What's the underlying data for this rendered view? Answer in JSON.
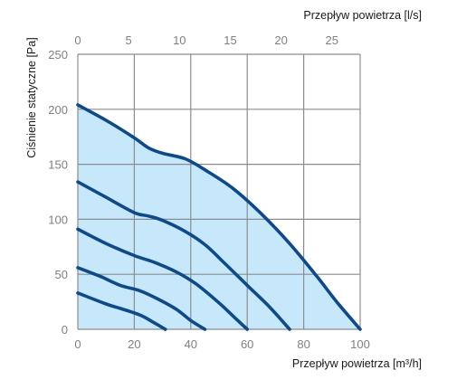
{
  "chart_data": {
    "type": "line",
    "xlabel": "Przepływ powietrza [m³/h]",
    "x2label": "Przepływ powietrza [l/s]",
    "ylabel": "Ciśnienie statyczne [Pa]",
    "xlim": [
      0,
      100
    ],
    "x2lim": [
      0,
      27.78
    ],
    "ylim": [
      0,
      250
    ],
    "x_ticks": [
      0,
      20,
      40,
      60,
      80,
      100
    ],
    "x2_ticks": [
      0,
      5,
      10,
      15,
      20,
      25
    ],
    "y_ticks": [
      0,
      50,
      100,
      150,
      200,
      250
    ],
    "grid": true,
    "fill_under_outer_curve": true,
    "fill_color": "#c6e8fa",
    "line_color": "#0d4a8c",
    "grid_color": "#8c8c8c",
    "series": [
      {
        "x": [
          0,
          10,
          20,
          25,
          30,
          38,
          45,
          55,
          65,
          75,
          85,
          92,
          100
        ],
        "y": [
          204,
          190,
          174,
          165,
          160,
          155,
          145,
          128,
          105,
          78,
          47,
          24,
          0
        ]
      },
      {
        "x": [
          0,
          10,
          20,
          25,
          30,
          38,
          45,
          52,
          60,
          68,
          75
        ],
        "y": [
          134,
          120,
          106,
          103,
          99,
          89,
          77,
          60,
          40,
          20,
          0
        ]
      },
      {
        "x": [
          0,
          10,
          20,
          27,
          35,
          42,
          50,
          55,
          60
        ],
        "y": [
          91,
          78,
          67,
          61,
          52,
          41,
          24,
          12,
          0
        ]
      },
      {
        "x": [
          0,
          8,
          15,
          22,
          28,
          35,
          40,
          45
        ],
        "y": [
          56,
          48,
          40,
          35,
          28,
          18,
          8,
          0
        ]
      },
      {
        "x": [
          0,
          10,
          15,
          22,
          27,
          31
        ],
        "y": [
          33,
          23,
          19,
          13,
          6,
          0
        ]
      }
    ]
  }
}
